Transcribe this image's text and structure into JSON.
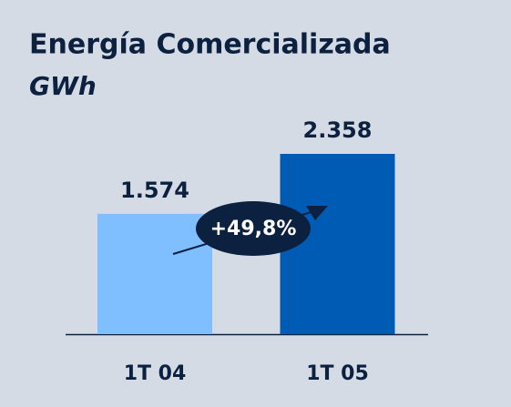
{
  "chart_data": {
    "type": "bar",
    "title": "Energía Comercializada",
    "subtitle": "GWh",
    "categories": [
      "1T 04",
      "1T 05"
    ],
    "values": [
      1574,
      2358
    ],
    "value_labels": [
      "1.574",
      "2.358"
    ],
    "colors": [
      "#7fbfff",
      "#005bb5"
    ],
    "annotation": "+49,8%"
  }
}
